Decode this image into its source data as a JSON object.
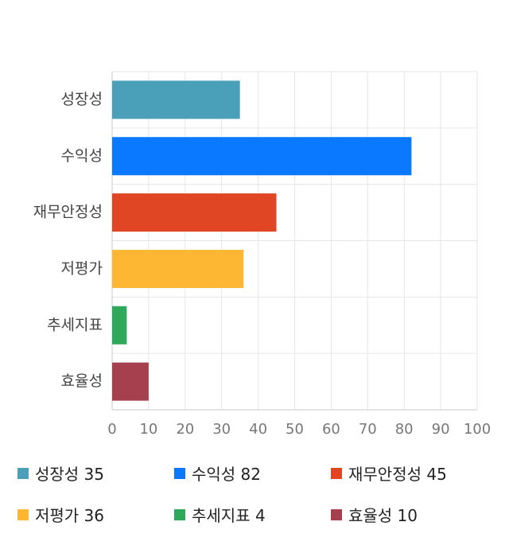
{
  "chart_data": {
    "type": "bar",
    "orientation": "horizontal",
    "categories": [
      "성장성",
      "수익성",
      "재무안정성",
      "저평가",
      "추세지표",
      "효율성"
    ],
    "values": [
      35,
      82,
      45,
      36,
      4,
      10
    ],
    "colors": [
      "#4aa0b8",
      "#0a78ff",
      "#e04524",
      "#fdb732",
      "#2ea85a",
      "#a6404e"
    ],
    "xlim": [
      0,
      100
    ],
    "xticks": [
      "0",
      "10",
      "20",
      "30",
      "40",
      "50",
      "60",
      "70",
      "80",
      "90",
      "100"
    ],
    "grid": true,
    "legend_placement": "bottom",
    "legend": [
      {
        "label": "성장성 35",
        "color": "#4aa0b8"
      },
      {
        "label": "수익성 82",
        "color": "#0a78ff"
      },
      {
        "label": "재무안정성 45",
        "color": "#e04524"
      },
      {
        "label": "저평가 36",
        "color": "#fdb732"
      },
      {
        "label": "추세지표 4",
        "color": "#2ea85a"
      },
      {
        "label": "효율성 10",
        "color": "#a6404e"
      }
    ]
  }
}
